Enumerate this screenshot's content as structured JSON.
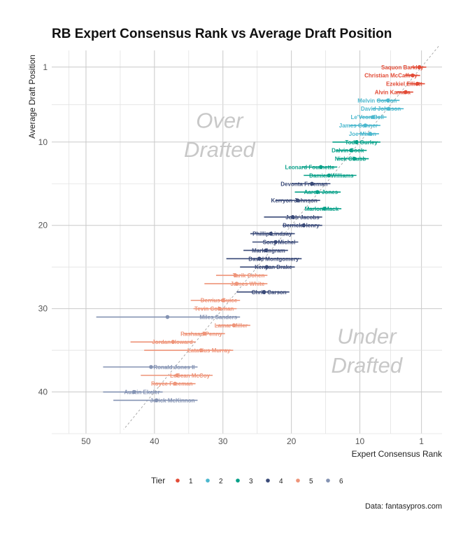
{
  "chart_data": {
    "type": "scatter",
    "title": "RB Expert Consensus Rank vs Average Draft Position",
    "xlabel": "Expert Consensus Rank",
    "ylabel": "Average Draft Position",
    "x_reversed": true,
    "y_reversed": true,
    "xlim": [
      55,
      -2
    ],
    "ylim": [
      -1,
      45
    ],
    "x_ticks": [
      50,
      40,
      30,
      20,
      10,
      1
    ],
    "y_ticks": [
      1,
      10,
      20,
      30,
      40
    ],
    "grid": true,
    "reference_line": "dashed diagonal y = x",
    "annotations": [
      {
        "text": "Over",
        "x": 30.5,
        "y": 8.3
      },
      {
        "text": "Drafted",
        "x": 30.5,
        "y": 11.8
      },
      {
        "text": "Under",
        "x": 9,
        "y": 34.2
      },
      {
        "text": "Drafted",
        "x": 9,
        "y": 37.7
      }
    ],
    "legend": {
      "title": "Tier",
      "position": "bottom",
      "entries": [
        {
          "label": "1",
          "color": "#E24B36"
        },
        {
          "label": "2",
          "color": "#4BB8CE"
        },
        {
          "label": "3",
          "color": "#06A088"
        },
        {
          "label": "4",
          "color": "#3A4A78"
        },
        {
          "label": "5",
          "color": "#EE9479"
        },
        {
          "label": "6",
          "color": "#8493B3"
        }
      ]
    },
    "caption": "Data: fantasypros.com",
    "players": [
      {
        "name": "Saquon Barkley",
        "tier": 1,
        "ecr": 1.3,
        "adp": 1,
        "lo": 0.3,
        "hi": 2.5
      },
      {
        "name": "Christian McCaffrey",
        "tier": 1,
        "ecr": 2.3,
        "adp": 2,
        "lo": 1.2,
        "hi": 3.4
      },
      {
        "name": "Ezekiel Elliott",
        "tier": 1,
        "ecr": 1.6,
        "adp": 3,
        "lo": 0.5,
        "hi": 3.2
      },
      {
        "name": "Alvin Kamara",
        "tier": 1,
        "ecr": 3.3,
        "adp": 4,
        "lo": 2.2,
        "hi": 4.7
      },
      {
        "name": "Melvin Gordon",
        "tier": 2,
        "ecr": 5.9,
        "adp": 5,
        "lo": 4.2,
        "hi": 7.5
      },
      {
        "name": "David Johnson",
        "tier": 2,
        "ecr": 5.8,
        "adp": 6,
        "lo": 3.6,
        "hi": 8.2
      },
      {
        "name": "Le'Veon Bell",
        "tier": 2,
        "ecr": 8.1,
        "adp": 7,
        "lo": 6.1,
        "hi": 10.1
      },
      {
        "name": "James Conner",
        "tier": 2,
        "ecr": 9.2,
        "adp": 8,
        "lo": 7.0,
        "hi": 11.5
      },
      {
        "name": "Joe Mixon",
        "tier": 2,
        "ecr": 8.5,
        "adp": 9,
        "lo": 7.2,
        "hi": 10.2
      },
      {
        "name": "Todd Gurley",
        "tier": 3,
        "ecr": 10.5,
        "adp": 10,
        "lo": 7.0,
        "hi": 14.0
      },
      {
        "name": "Dalvin Cook",
        "tier": 3,
        "ecr": 11.3,
        "adp": 11,
        "lo": 9.0,
        "hi": 13.5
      },
      {
        "name": "Nick Chubb",
        "tier": 3,
        "ecr": 10.8,
        "adp": 12,
        "lo": 8.7,
        "hi": 13.3
      },
      {
        "name": "Leonard Fournette",
        "tier": 3,
        "ecr": 15.7,
        "adp": 13,
        "lo": 13.3,
        "hi": 18.5
      },
      {
        "name": "Damien Williams",
        "tier": 3,
        "ecr": 14.5,
        "adp": 14,
        "lo": 10.5,
        "hi": 18.2
      },
      {
        "name": "Devonta Freeman",
        "tier": 4,
        "ecr": 17.0,
        "adp": 15,
        "lo": 14.3,
        "hi": 20.0
      },
      {
        "name": "Aaron Jones",
        "tier": 3,
        "ecr": 16.2,
        "adp": 16,
        "lo": 12.8,
        "hi": 19.5
      },
      {
        "name": "Kerryon Johnson",
        "tier": 4,
        "ecr": 19.1,
        "adp": 17,
        "lo": 15.8,
        "hi": 22.3
      },
      {
        "name": "Marlon Mack",
        "tier": 3,
        "ecr": 15.2,
        "adp": 18,
        "lo": 12.7,
        "hi": 17.7
      },
      {
        "name": "Josh Jacobs",
        "tier": 4,
        "ecr": 19.8,
        "adp": 19,
        "lo": 15.5,
        "hi": 24.0
      },
      {
        "name": "Derrick Henry",
        "tier": 4,
        "ecr": 18.2,
        "adp": 20,
        "lo": 15.5,
        "hi": 21.3
      },
      {
        "name": "Phillip Lindsay",
        "tier": 4,
        "ecr": 23.0,
        "adp": 21,
        "lo": 19.5,
        "hi": 26.0
      },
      {
        "name": "Sony Michel",
        "tier": 4,
        "ecr": 22.3,
        "adp": 22,
        "lo": 19.0,
        "hi": 25.7
      },
      {
        "name": "Mark Ingram",
        "tier": 4,
        "ecr": 23.7,
        "adp": 23,
        "lo": 20.5,
        "hi": 27.0
      },
      {
        "name": "David Montgomery",
        "tier": 4,
        "ecr": 24.7,
        "adp": 24,
        "lo": 18.5,
        "hi": 29.5
      },
      {
        "name": "Kenyan Drake",
        "tier": 4,
        "ecr": 23.6,
        "adp": 25,
        "lo": 19.5,
        "hi": 27.5
      },
      {
        "name": "Tarik Cohen",
        "tier": 5,
        "ecr": 28.2,
        "adp": 26,
        "lo": 23.5,
        "hi": 31.0
      },
      {
        "name": "James White",
        "tier": 5,
        "ecr": 28.0,
        "adp": 27,
        "lo": 23.5,
        "hi": 32.7
      },
      {
        "name": "Chris Carson",
        "tier": 4,
        "ecr": 24.0,
        "adp": 28,
        "lo": 20.3,
        "hi": 28.0
      },
      {
        "name": "Derrius Guice",
        "tier": 5,
        "ecr": 30.0,
        "adp": 29,
        "lo": 27.5,
        "hi": 34.7
      },
      {
        "name": "Tevin Coleman",
        "tier": 5,
        "ecr": 30.5,
        "adp": 30,
        "lo": 28.0,
        "hi": 34.3
      },
      {
        "name": "Miles Sanders",
        "tier": 6,
        "ecr": 38.1,
        "adp": 31,
        "lo": 27.5,
        "hi": 48.5
      },
      {
        "name": "Lamar Miller",
        "tier": 5,
        "ecr": 28.4,
        "adp": 32,
        "lo": 26.0,
        "hi": 31.0
      },
      {
        "name": "Rashaad Penny",
        "tier": 5,
        "ecr": 32.7,
        "adp": 33,
        "lo": 29.7,
        "hi": 35.7
      },
      {
        "name": "Jordan Howard",
        "tier": 5,
        "ecr": 37.3,
        "adp": 34,
        "lo": 34.0,
        "hi": 43.5
      },
      {
        "name": "Latavius Murray",
        "tier": 5,
        "ecr": 33.2,
        "adp": 35,
        "lo": 28.5,
        "hi": 41.5
      },
      {
        "name": "Ronald Jones II",
        "tier": 6,
        "ecr": 40.5,
        "adp": 37,
        "lo": 33.7,
        "hi": 47.5
      },
      {
        "name": "LeSean McCoy",
        "tier": 5,
        "ecr": 36.7,
        "adp": 38,
        "lo": 31.5,
        "hi": 42.0
      },
      {
        "name": "Royce Freeman",
        "tier": 5,
        "ecr": 37.0,
        "adp": 39,
        "lo": 34.0,
        "hi": 40.3
      },
      {
        "name": "Austin Ekeler",
        "tier": 6,
        "ecr": 43.0,
        "adp": 40,
        "lo": 38.8,
        "hi": 47.5
      },
      {
        "name": "Jerick McKinnon",
        "tier": 6,
        "ecr": 39.7,
        "adp": 41,
        "lo": 33.7,
        "hi": 46.0
      }
    ]
  }
}
